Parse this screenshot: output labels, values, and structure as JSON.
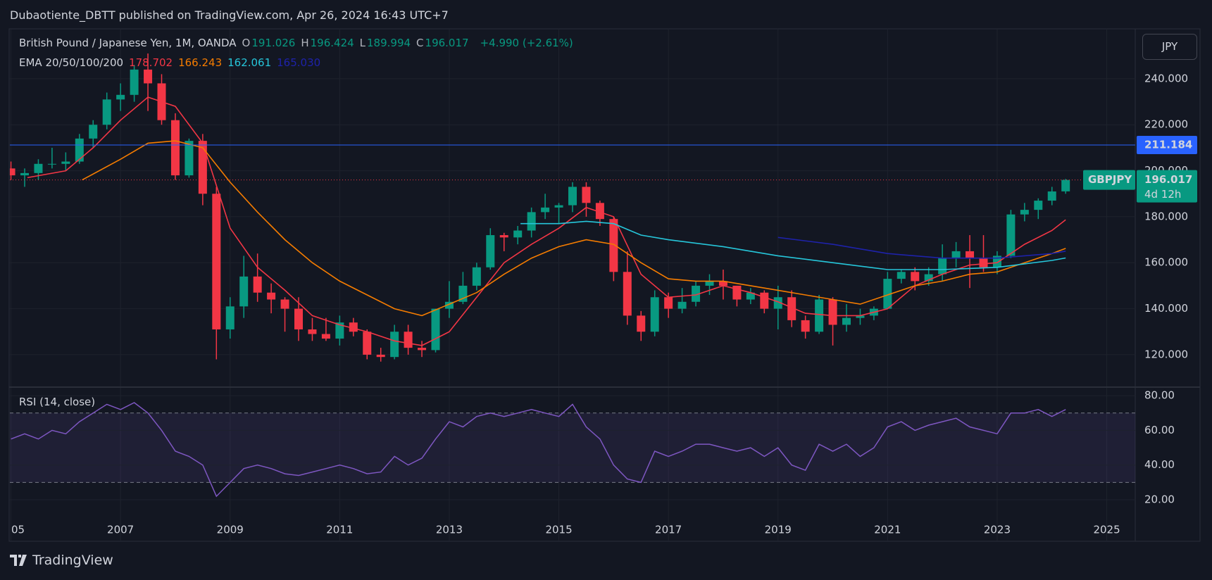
{
  "page": {
    "byline": "Dubaotiente_DBTT published on TradingView.com, Apr 26, 2024 16:43 UTC+7",
    "brand": "TradingView"
  },
  "chart_data": {
    "type": "candlestick",
    "title": "British Pound / Japanese Yen, 1M, OANDA",
    "symbol": "GBPJPY",
    "countdown": "4d 12h",
    "change": "+4.990 (+2.61%)",
    "currency": "JPY",
    "ohlc_labels": [
      "O",
      "H",
      "L",
      "C"
    ],
    "up_color": "#089981",
    "down_color": "#f23645",
    "x": [
      2005,
      2005.25,
      2005.5,
      2005.75,
      2006,
      2006.25,
      2006.5,
      2006.75,
      2007,
      2007.25,
      2007.5,
      2007.75,
      2008,
      2008.25,
      2008.5,
      2008.75,
      2009,
      2009.25,
      2009.5,
      2009.75,
      2010,
      2010.25,
      2010.5,
      2010.75,
      2011,
      2011.25,
      2011.5,
      2011.75,
      2012,
      2012.25,
      2012.5,
      2012.75,
      2013,
      2013.25,
      2013.5,
      2013.75,
      2014,
      2014.25,
      2014.5,
      2014.75,
      2015,
      2015.25,
      2015.5,
      2015.75,
      2016,
      2016.25,
      2016.5,
      2016.75,
      2017,
      2017.25,
      2017.5,
      2017.75,
      2018,
      2018.25,
      2018.5,
      2018.75,
      2019,
      2019.25,
      2019.5,
      2019.75,
      2020,
      2020.25,
      2020.5,
      2020.75,
      2021,
      2021.25,
      2021.5,
      2021.75,
      2022,
      2022.25,
      2022.5,
      2022.75,
      2023,
      2023.25,
      2023.5,
      2023.75,
      2024,
      2024.25
    ],
    "open": [
      201,
      198,
      199,
      203,
      203,
      204,
      214,
      220,
      231,
      233,
      244,
      238,
      222,
      198,
      213,
      190,
      131,
      141,
      154,
      147,
      144,
      140,
      131,
      129,
      127,
      134,
      130,
      120,
      119,
      130,
      123,
      122,
      140,
      143,
      150,
      158,
      172,
      171,
      174,
      182,
      184,
      185,
      193,
      186,
      179,
      156,
      137,
      130,
      145,
      140,
      143,
      150,
      152,
      150,
      144,
      147,
      140,
      145,
      135,
      130,
      144,
      133,
      136,
      137,
      140,
      153,
      156,
      152,
      155,
      162,
      165,
      162,
      158,
      163,
      181,
      183,
      187,
      191.026
    ],
    "high": [
      204,
      201,
      205,
      210,
      208,
      216,
      222,
      234,
      238,
      246,
      251,
      242,
      225,
      214,
      216,
      193,
      145,
      163,
      164,
      151,
      145,
      145,
      136,
      136,
      137,
      136,
      131,
      123,
      133,
      133,
      126,
      140,
      152,
      156,
      160,
      175,
      173,
      176,
      184,
      190,
      186,
      195,
      195,
      187,
      180,
      165,
      139,
      148,
      147,
      149,
      152,
      155,
      157,
      150,
      149,
      148,
      150,
      148,
      137,
      146,
      145,
      142,
      140,
      141,
      156,
      157,
      158,
      158,
      168,
      169,
      172,
      172,
      165,
      183,
      186,
      188,
      193,
      196.424
    ],
    "low": [
      196,
      193,
      196,
      201,
      200,
      203,
      210,
      218,
      226,
      230,
      226,
      220,
      196,
      197,
      185,
      118,
      127,
      136,
      143,
      138,
      130,
      126,
      126,
      126,
      124,
      128,
      118,
      117,
      118,
      120,
      119,
      121,
      136,
      142,
      148,
      157,
      165,
      168,
      171,
      179,
      177,
      182,
      180,
      176,
      152,
      133,
      126,
      128,
      136,
      138,
      141,
      146,
      144,
      141,
      142,
      138,
      131,
      132,
      127,
      129,
      124,
      130,
      133,
      135,
      140,
      151,
      148,
      150,
      152,
      158,
      149,
      156,
      155,
      162,
      178,
      179,
      185,
      189.994
    ],
    "close": [
      198,
      199,
      203,
      203,
      204,
      214,
      220,
      231,
      233,
      244,
      238,
      222,
      198,
      213,
      190,
      131,
      141,
      154,
      147,
      144,
      140,
      131,
      129,
      127,
      134,
      130,
      120,
      119,
      130,
      123,
      122,
      140,
      143,
      150,
      158,
      172,
      171,
      174,
      182,
      184,
      185,
      193,
      186,
      179,
      156,
      137,
      130,
      145,
      140,
      143,
      150,
      152,
      150,
      144,
      147,
      140,
      145,
      135,
      130,
      144,
      133,
      136,
      137,
      140,
      153,
      156,
      152,
      155,
      162,
      165,
      162,
      158,
      163,
      181,
      183,
      187,
      191,
      196.017
    ],
    "xlim": [
      2004.98,
      2025.52
    ],
    "xticks": [
      {
        "value": 2005,
        "label": "05"
      },
      2007,
      2009,
      2011,
      2013,
      2015,
      2017,
      2019,
      2021,
      2023,
      2025
    ],
    "ylim": [
      106.2,
      261.4
    ],
    "yticks": [
      {
        "value": 120,
        "label": "120.000"
      },
      {
        "value": 140,
        "label": "140.000"
      },
      {
        "value": 160,
        "label": "160.000"
      },
      {
        "value": 180,
        "label": "180.000"
      },
      {
        "value": 200,
        "label": "200.000"
      },
      {
        "value": 220,
        "label": "220.000"
      },
      {
        "value": 240,
        "label": "240.000"
      }
    ],
    "hline": {
      "value": 211.184,
      "color": "#2962ff"
    },
    "ema": {
      "label": "EMA 20/50/100/200",
      "series": [
        {
          "color": "#f23645",
          "x": [
            2005.3,
            2006,
            2006.5,
            2007,
            2007.5,
            2008,
            2008.5,
            2009,
            2009.5,
            2010,
            2010.5,
            2011,
            2011.5,
            2012,
            2012.5,
            2013,
            2013.5,
            2014,
            2014.5,
            2015,
            2015.5,
            2016,
            2016.5,
            2017,
            2017.5,
            2018,
            2018.5,
            2019,
            2019.5,
            2020,
            2020.5,
            2021,
            2021.5,
            2022,
            2022.5,
            2023,
            2023.5,
            2024,
            2024.25
          ],
          "values": [
            197,
            200,
            210,
            222,
            232,
            228,
            212,
            175,
            158,
            148,
            137,
            133,
            130,
            126,
            124,
            130,
            145,
            160,
            168,
            175,
            184,
            180,
            155,
            145,
            146,
            150,
            147,
            143,
            138,
            137,
            137,
            140,
            150,
            155,
            159,
            160,
            168,
            174,
            178.702
          ]
        },
        {
          "color": "#f57c00",
          "x": [
            2006.3,
            2007,
            2007.5,
            2008,
            2008.5,
            2009,
            2009.5,
            2010,
            2010.5,
            2011,
            2011.5,
            2012,
            2012.5,
            2013,
            2013.5,
            2014,
            2014.5,
            2015,
            2015.5,
            2016,
            2016.5,
            2017,
            2017.5,
            2018,
            2018.5,
            2019,
            2019.5,
            2020,
            2020.5,
            2021,
            2021.5,
            2022,
            2022.5,
            2023,
            2023.5,
            2024,
            2024.25
          ],
          "values": [
            196,
            205,
            212,
            213,
            210,
            195,
            182,
            170,
            160,
            152,
            146,
            140,
            137,
            142,
            147,
            155,
            162,
            167,
            170,
            168,
            160,
            153,
            152,
            152,
            150,
            148,
            146,
            144,
            142,
            146,
            150,
            152,
            155,
            156,
            160,
            164,
            166.243
          ]
        },
        {
          "color": "#26c6da",
          "x": [
            2014.3,
            2015,
            2015.5,
            2016,
            2016.5,
            2017,
            2018,
            2019,
            2020,
            2021,
            2022,
            2023,
            2024,
            2024.25
          ],
          "values": [
            177,
            177,
            178,
            177,
            172,
            170,
            167,
            163,
            160,
            157,
            157,
            158,
            161,
            162.061
          ]
        },
        {
          "color": "#1e22aa",
          "x": [
            2019,
            2020,
            2021,
            2022,
            2023,
            2024,
            2024.25
          ],
          "values": [
            171,
            168,
            164,
            162,
            162,
            164,
            165.03
          ],
          "value_label": "165.030"
        }
      ]
    },
    "rsi": {
      "label": "RSI (14, close)",
      "color": "#7e57c2",
      "values": [
        55,
        58,
        55,
        60,
        58,
        65,
        70,
        75,
        72,
        76,
        70,
        60,
        48,
        45,
        40,
        22,
        30,
        38,
        40,
        38,
        35,
        34,
        36,
        38,
        40,
        38,
        35,
        36,
        45,
        40,
        44,
        55,
        65,
        62,
        68,
        70,
        68,
        70,
        72,
        70,
        68,
        75,
        62,
        55,
        40,
        32,
        30,
        48,
        45,
        48,
        52,
        52,
        50,
        48,
        50,
        45,
        50,
        40,
        37,
        52,
        48,
        52,
        45,
        50,
        62,
        65,
        60,
        63,
        65,
        67,
        62,
        60,
        58,
        70,
        70,
        72,
        68,
        72
      ],
      "bands": [
        30,
        70
      ],
      "ylim": [
        -3.5,
        84.5
      ],
      "yticks": [
        {
          "value": 20,
          "label": "20.00"
        },
        {
          "value": 40,
          "label": "40.00"
        },
        {
          "value": 60,
          "label": "60.00"
        },
        {
          "value": 80,
          "label": "80.00"
        }
      ]
    }
  }
}
